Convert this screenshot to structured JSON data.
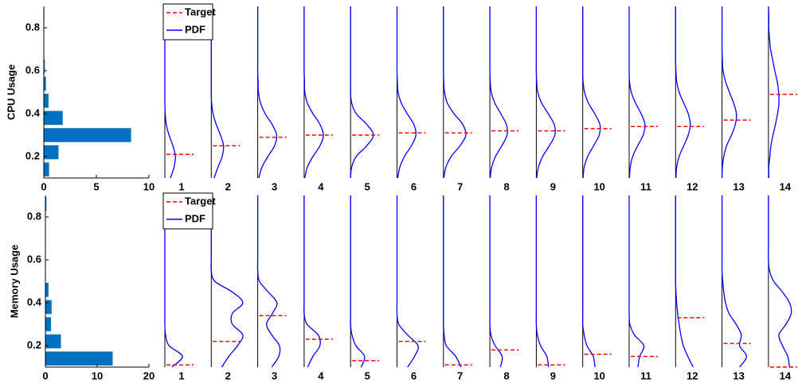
{
  "chart_data": [
    {
      "type": "density_panels",
      "ylabel": "CPU Usage",
      "ylim": [
        0.1,
        0.9
      ],
      "yticks": [
        0.2,
        0.4,
        0.6,
        0.8
      ],
      "hist": {
        "bins": [
          0.1,
          0.18,
          0.26,
          0.34,
          0.42,
          0.5,
          0.58,
          0.66,
          0.74,
          0.82,
          0.9
        ],
        "counts": [
          0.5,
          1.4,
          8.3,
          1.8,
          0.45,
          0.2,
          0.1,
          0,
          0,
          0.05
        ],
        "xlim": [
          0,
          10
        ],
        "xticks": [
          0,
          5,
          10
        ],
        "color": "#0070c0"
      },
      "categories": [
        "1",
        "2",
        "3",
        "4",
        "5",
        "6",
        "7",
        "8",
        "9",
        "10",
        "11",
        "12",
        "13",
        "14"
      ],
      "pdf_y": [
        0.1,
        0.15,
        0.2,
        0.25,
        0.3,
        0.35,
        0.4,
        0.45,
        0.5,
        0.55,
        0.6,
        0.65,
        0.7,
        0.75,
        0.8,
        0.85,
        0.9
      ],
      "pdf_xlim": [
        0,
        1
      ],
      "legend": "upper left",
      "series": [
        {
          "name": "Target",
          "color": "#ff0000",
          "values": [
            0.21,
            0.25,
            0.29,
            0.3,
            0.3,
            0.31,
            0.31,
            0.32,
            0.32,
            0.33,
            0.34,
            0.34,
            0.37,
            0.49
          ]
        },
        {
          "name": "PDF",
          "color": "#0000ff",
          "values": [
            [
              0.16,
              0.26,
              0.3,
              0.23,
              0.12,
              0.04,
              0.01,
              0,
              0,
              0,
              0,
              0,
              0,
              0,
              0,
              0,
              0
            ],
            [
              0.08,
              0.19,
              0.31,
              0.35,
              0.26,
              0.14,
              0.05,
              0.01,
              0,
              0,
              0,
              0,
              0,
              0,
              0,
              0,
              0
            ],
            [
              0.03,
              0.12,
              0.29,
              0.48,
              0.54,
              0.41,
              0.21,
              0.08,
              0.02,
              0.01,
              0,
              0,
              0,
              0,
              0,
              0,
              0
            ],
            [
              0.02,
              0.09,
              0.25,
              0.45,
              0.55,
              0.45,
              0.25,
              0.09,
              0.02,
              0.01,
              0,
              0,
              0,
              0,
              0,
              0,
              0
            ],
            [
              0,
              0.03,
              0.16,
              0.46,
              0.65,
              0.46,
              0.16,
              0.03,
              0,
              0,
              0,
              0,
              0,
              0,
              0,
              0,
              0
            ],
            [
              0.02,
              0.08,
              0.21,
              0.41,
              0.54,
              0.48,
              0.29,
              0.12,
              0.03,
              0.01,
              0,
              0,
              0,
              0,
              0,
              0,
              0
            ],
            [
              0.01,
              0.07,
              0.22,
              0.47,
              0.64,
              0.55,
              0.3,
              0.11,
              0.03,
              0.01,
              0,
              0,
              0,
              0,
              0,
              0,
              0
            ],
            [
              0.01,
              0.05,
              0.16,
              0.34,
              0.49,
              0.47,
              0.31,
              0.14,
              0.04,
              0.01,
              0,
              0,
              0,
              0,
              0,
              0,
              0
            ],
            [
              0.01,
              0.06,
              0.18,
              0.37,
              0.53,
              0.51,
              0.34,
              0.15,
              0.04,
              0.01,
              0,
              0,
              0,
              0,
              0,
              0,
              0
            ],
            [
              0.01,
              0.04,
              0.14,
              0.31,
              0.47,
              0.49,
              0.34,
              0.16,
              0.05,
              0.01,
              0,
              0,
              0,
              0,
              0,
              0,
              0
            ],
            [
              0.01,
              0.03,
              0.1,
              0.24,
              0.4,
              0.45,
              0.34,
              0.18,
              0.06,
              0.01,
              0,
              0,
              0,
              0,
              0,
              0,
              0
            ],
            [
              0.01,
              0.03,
              0.1,
              0.23,
              0.36,
              0.42,
              0.36,
              0.23,
              0.1,
              0.03,
              0.01,
              0,
              0,
              0,
              0,
              0,
              0
            ],
            [
              0,
              0.01,
              0.05,
              0.13,
              0.27,
              0.38,
              0.41,
              0.33,
              0.21,
              0.1,
              0.03,
              0.01,
              0,
              0,
              0,
              0,
              0
            ],
            [
              0.01,
              0.01,
              0.04,
              0.07,
              0.13,
              0.2,
              0.26,
              0.3,
              0.29,
              0.25,
              0.18,
              0.12,
              0.06,
              0.03,
              0.01,
              0.01,
              0
            ]
          ]
        }
      ]
    },
    {
      "type": "density_panels",
      "ylabel": "Memory Usage",
      "ylim": [
        0.1,
        0.9
      ],
      "yticks": [
        0.2,
        0.4,
        0.6,
        0.8
      ],
      "hist": {
        "bins": [
          0.1,
          0.18,
          0.26,
          0.34,
          0.42,
          0.5,
          0.58,
          0.66,
          0.74,
          0.82,
          0.9
        ],
        "counts": [
          13,
          3,
          1.1,
          1.2,
          0.6,
          0,
          0,
          0,
          0,
          0.2
        ],
        "xlim": [
          0,
          20
        ],
        "xticks": [
          0,
          10,
          20
        ],
        "color": "#0070c0"
      },
      "categories": [
        "1",
        "2",
        "3",
        "4",
        "5",
        "6",
        "7",
        "8",
        "9",
        "10",
        "11",
        "12",
        "13",
        "14"
      ],
      "pdf_y": [
        0.1,
        0.15,
        0.2,
        0.25,
        0.3,
        0.35,
        0.4,
        0.45,
        0.5,
        0.55,
        0.6,
        0.65,
        0.7,
        0.75,
        0.8,
        0.85,
        0.9
      ],
      "pdf_xlim": [
        0,
        1
      ],
      "legend": "upper left",
      "series": [
        {
          "name": "Target",
          "color": "#ff0000",
          "values": [
            0.11,
            0.22,
            0.34,
            0.23,
            0.13,
            0.22,
            0.11,
            0.18,
            0.11,
            0.16,
            0.15,
            0.33,
            0.21,
            0.1
          ]
        },
        {
          "name": "PDF",
          "color": "#0000ff",
          "values": [
            [
              0.2,
              0.5,
              0.12,
              0.02,
              0,
              0,
              0,
              0,
              0,
              0,
              0,
              0,
              0,
              0,
              0,
              0,
              0
            ],
            [
              0.3,
              0.5,
              0.75,
              0.9,
              0.6,
              0.6,
              0.9,
              0.6,
              0.1,
              0,
              0,
              0,
              0,
              0,
              0,
              0,
              0
            ],
            [
              0.4,
              0.6,
              0.62,
              0.4,
              0.25,
              0.42,
              0.55,
              0.3,
              0.05,
              0,
              0,
              0,
              0,
              0,
              0,
              0,
              0
            ],
            [
              0.1,
              0.25,
              0.45,
              0.4,
              0.08,
              0,
              0,
              0,
              0,
              0,
              0,
              0,
              0,
              0,
              0,
              0,
              0
            ],
            [
              0.3,
              0.4,
              0.15,
              0.04,
              0,
              0,
              0,
              0,
              0,
              0,
              0,
              0,
              0,
              0,
              0,
              0,
              0
            ],
            [
              0.3,
              0.5,
              0.6,
              0.3,
              0.05,
              0,
              0,
              0,
              0,
              0,
              0,
              0,
              0,
              0,
              0,
              0,
              0
            ],
            [
              0.5,
              0.35,
              0.08,
              0.02,
              0,
              0,
              0,
              0,
              0,
              0,
              0,
              0,
              0,
              0,
              0,
              0,
              0
            ],
            [
              0.3,
              0.35,
              0.15,
              0.03,
              0,
              0,
              0,
              0,
              0,
              0,
              0,
              0,
              0,
              0,
              0,
              0,
              0
            ],
            [
              0.35,
              0.3,
              0.12,
              0.03,
              0,
              0,
              0,
              0,
              0,
              0,
              0,
              0,
              0,
              0,
              0,
              0,
              0
            ],
            [
              0.35,
              0.3,
              0.12,
              0.04,
              0,
              0,
              0,
              0,
              0,
              0,
              0,
              0,
              0,
              0,
              0,
              0,
              0
            ],
            [
              0.25,
              0.3,
              0.42,
              0.15,
              0.02,
              0,
              0,
              0,
              0,
              0,
              0,
              0,
              0,
              0,
              0,
              0,
              0
            ],
            [
              0.5,
              0.35,
              0.22,
              0.15,
              0.1,
              0.06,
              0.03,
              0.01,
              0,
              0,
              0,
              0,
              0,
              0,
              0,
              0,
              0
            ],
            [
              0.5,
              0.7,
              0.5,
              0.55,
              0.4,
              0.2,
              0.1,
              0.05,
              0.02,
              0,
              0,
              0,
              0,
              0,
              0,
              0,
              0
            ],
            [
              0.6,
              0.55,
              0.4,
              0.3,
              0.5,
              0.65,
              0.6,
              0.4,
              0.15,
              0.03,
              0,
              0,
              0,
              0,
              0,
              0,
              0
            ]
          ]
        }
      ]
    }
  ]
}
